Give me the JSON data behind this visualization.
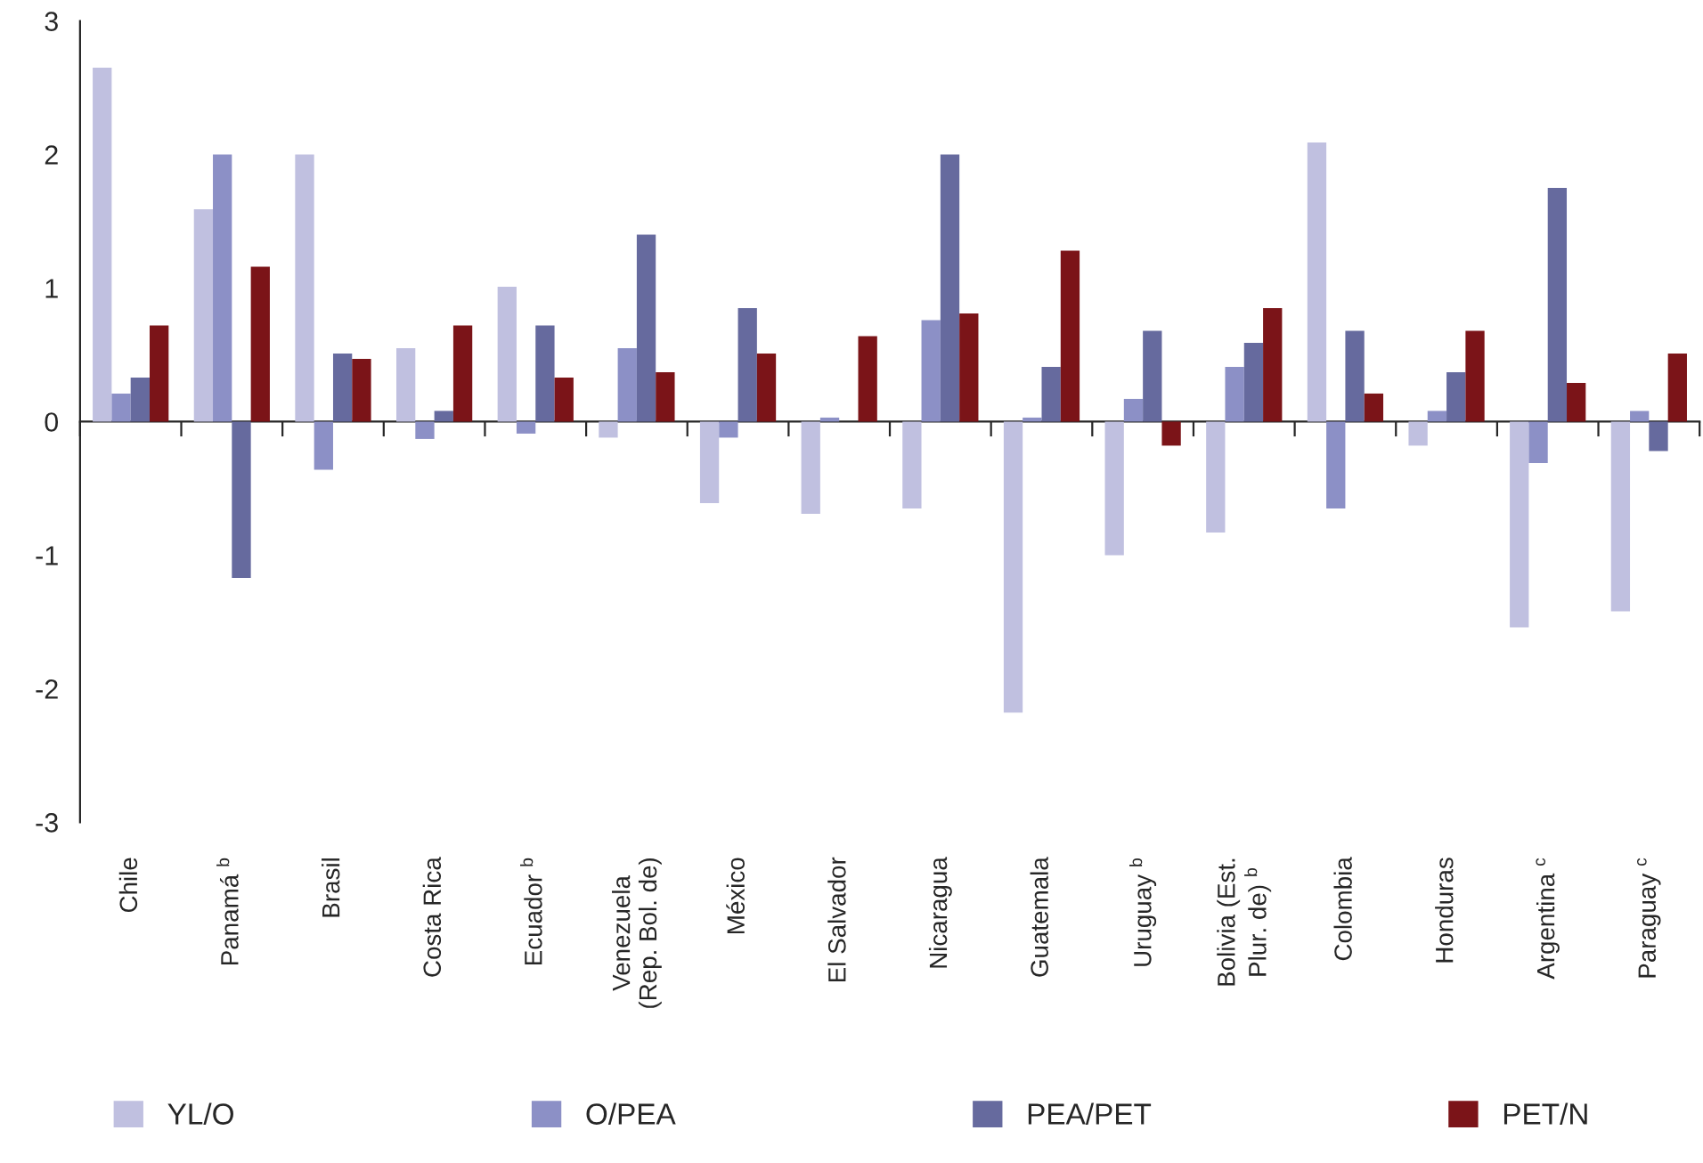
{
  "chart_data": {
    "type": "bar",
    "categories": [
      "Chile",
      "Panamá $^{b}$",
      "Brasil",
      "Costa Rica",
      "Ecuador $^{b}$",
      "Venezuela\n(Rep. Bol. de)",
      "México",
      "El Salvador",
      "Nicaragua",
      "Guatemala",
      "Uruguay $^{b}$",
      "Bolivia (Est.\nPlur. de) $^{b}$",
      "Colombia",
      "Honduras",
      "Argentina $^{c}$",
      "Paraguay $^{c}$"
    ],
    "series": [
      {
        "name": "YL/O",
        "color": "#c0c0e0",
        "values": [
          2.65,
          1.59,
          2.0,
          0.55,
          1.01,
          -0.12,
          -0.61,
          -0.69,
          -0.65,
          -2.18,
          -1.0,
          -0.83,
          2.09,
          -0.18,
          -1.54,
          -1.42
        ]
      },
      {
        "name": "O/PEA",
        "color": "#8c90c6",
        "values": [
          0.21,
          2.0,
          -0.36,
          -0.13,
          -0.09,
          0.55,
          -0.12,
          0.03,
          0.76,
          0.03,
          0.17,
          0.41,
          -0.65,
          0.08,
          -0.31,
          0.08
        ]
      },
      {
        "name": "PEA/PET",
        "color": "#666a9e",
        "values": [
          0.33,
          -1.17,
          0.51,
          0.08,
          0.72,
          1.4,
          0.85,
          null,
          2.0,
          0.41,
          0.68,
          0.59,
          0.68,
          0.37,
          1.75,
          -0.22
        ]
      },
      {
        "name": "PET/N",
        "color": "#7b1418",
        "values": [
          0.72,
          1.16,
          0.47,
          0.72,
          0.33,
          0.37,
          0.51,
          0.64,
          0.81,
          1.28,
          -0.18,
          0.85,
          0.21,
          0.68,
          0.29,
          0.51
        ]
      }
    ],
    "ylim": [
      -3,
      3
    ],
    "yticks": [
      -3,
      -2,
      -1,
      0,
      1,
      2,
      3
    ],
    "legend": "bottom"
  }
}
